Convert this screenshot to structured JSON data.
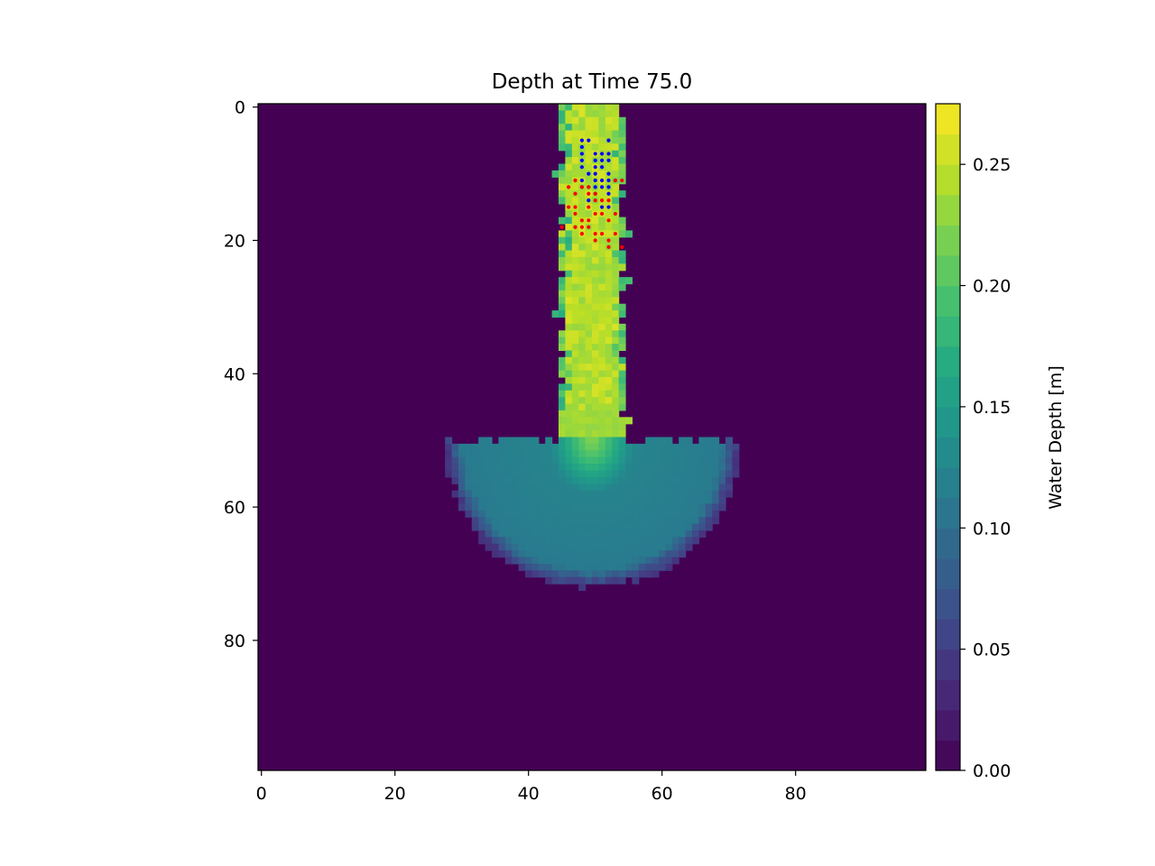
{
  "chart_data": {
    "type": "heatmap",
    "title": "Depth at Time 75.0",
    "grid": false,
    "xlim": [
      -0.5,
      99.5
    ],
    "ylim": [
      99.5,
      -0.5
    ],
    "xticks": [
      0,
      20,
      40,
      60,
      80
    ],
    "yticks": [
      0,
      20,
      40,
      60,
      80
    ],
    "colormap": "viridis",
    "colorbar": {
      "label": "Water Depth [m]",
      "range": [
        0.0,
        0.275
      ],
      "ticks": [
        "0.00",
        "0.05",
        "0.10",
        "0.15",
        "0.20",
        "0.25"
      ],
      "tick_values": [
        0.0,
        0.05,
        0.1,
        0.15,
        0.2,
        0.25
      ]
    },
    "background_value": 0.0,
    "channel": {
      "x_range": [
        45,
        54
      ],
      "y_range": [
        0,
        49
      ],
      "depth": 0.245
    },
    "fan": {
      "center_x": 49.5,
      "top_y": 50,
      "radius": 22,
      "edge_depth": 0.16,
      "inner_depth": 0.13
    },
    "point_series": [
      {
        "color": "#0000ff",
        "points": [
          [
            48,
            5
          ],
          [
            49,
            5
          ],
          [
            52,
            5
          ],
          [
            48,
            6
          ],
          [
            50,
            7
          ],
          [
            51,
            7
          ],
          [
            52,
            7
          ],
          [
            48,
            7
          ],
          [
            48,
            8
          ],
          [
            50,
            8
          ],
          [
            51,
            8
          ],
          [
            52,
            8
          ],
          [
            48,
            9
          ],
          [
            50,
            9
          ],
          [
            51,
            9
          ],
          [
            49,
            10
          ],
          [
            50,
            10
          ],
          [
            52,
            10
          ],
          [
            48,
            11
          ],
          [
            50,
            11
          ],
          [
            51,
            11
          ],
          [
            52,
            11
          ],
          [
            48,
            12
          ],
          [
            49,
            12
          ],
          [
            50,
            12
          ],
          [
            51,
            12
          ],
          [
            49,
            14
          ],
          [
            51,
            15
          ],
          [
            52,
            15
          ],
          [
            50,
            13
          ],
          [
            52,
            13
          ],
          [
            52,
            12
          ],
          [
            53,
            11
          ]
        ]
      },
      {
        "color": "#ff0000",
        "points": [
          [
            47,
            11
          ],
          [
            48,
            12
          ],
          [
            49,
            12
          ],
          [
            46,
            12
          ],
          [
            47,
            13
          ],
          [
            49,
            13
          ],
          [
            50,
            13
          ],
          [
            51,
            14
          ],
          [
            52,
            14
          ],
          [
            47,
            15
          ],
          [
            49,
            15
          ],
          [
            50,
            14
          ],
          [
            53,
            11
          ],
          [
            54,
            11
          ],
          [
            50,
            16
          ],
          [
            51,
            16
          ],
          [
            53,
            16
          ],
          [
            48,
            17
          ],
          [
            49,
            17
          ],
          [
            52,
            17
          ],
          [
            47,
            18
          ],
          [
            48,
            18
          ],
          [
            49,
            18
          ],
          [
            53,
            19
          ],
          [
            48,
            19
          ],
          [
            50,
            19
          ],
          [
            51,
            19
          ],
          [
            45,
            18
          ],
          [
            50,
            20
          ],
          [
            52,
            20
          ],
          [
            52,
            21
          ],
          [
            54,
            21
          ],
          [
            46,
            15
          ],
          [
            47,
            16
          ]
        ]
      }
    ]
  }
}
